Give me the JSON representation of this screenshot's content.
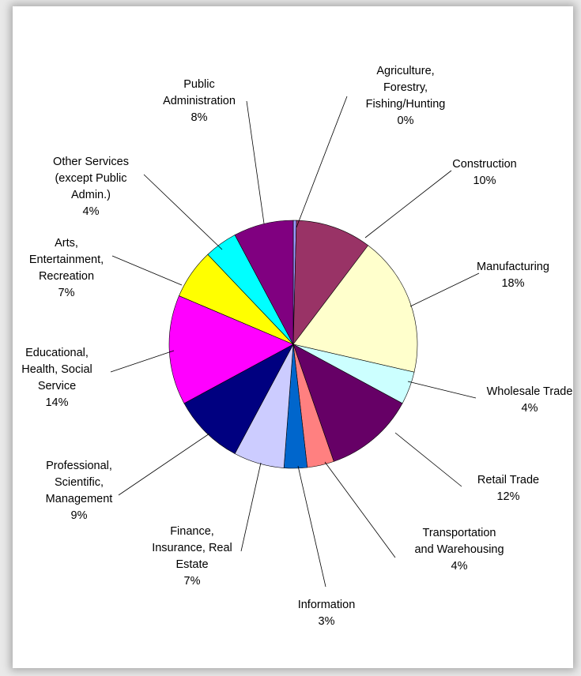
{
  "chart_data": {
    "type": "pie",
    "slices": [
      {
        "label": "Agriculture,\nForestry,\nFishing/Hunting",
        "pct_label": "0%",
        "value": 0.4,
        "color": "#9999FF"
      },
      {
        "label": "Construction",
        "pct_label": "10%",
        "value": 9.9,
        "color": "#993366"
      },
      {
        "label": "Manufacturing",
        "pct_label": "18%",
        "value": 18.3,
        "color": "#FFFFCC"
      },
      {
        "label": "Wholesale Trade",
        "pct_label": "4%",
        "value": 4.3,
        "color": "#CCFFFF"
      },
      {
        "label": "Retail Trade",
        "pct_label": "12%",
        "value": 11.8,
        "color": "#660066"
      },
      {
        "label": "Transportation\nand Warehousing",
        "pct_label": "4%",
        "value": 3.5,
        "color": "#FF8080"
      },
      {
        "label": "Information",
        "pct_label": "3%",
        "value": 3.0,
        "color": "#0066CC"
      },
      {
        "label": "Finance,\nInsurance, Real\nEstate",
        "pct_label": "7%",
        "value": 6.6,
        "color": "#CCCCFF"
      },
      {
        "label": "Professional,\nScientific,\nManagement",
        "pct_label": "9%",
        "value": 9.3,
        "color": "#000080"
      },
      {
        "label": "Educational,\nHealth, Social\nService",
        "pct_label": "14%",
        "value": 14.3,
        "color": "#FF00FF"
      },
      {
        "label": "Arts,\nEntertainment,\nRecreation",
        "pct_label": "7%",
        "value": 6.5,
        "color": "#FFFF00"
      },
      {
        "label": "Other Services\n(except Public\nAdmin.)",
        "pct_label": "4%",
        "value": 4.3,
        "color": "#00FFFF"
      },
      {
        "label": "Public\nAdministration",
        "pct_label": "8%",
        "value": 7.8,
        "color": "#800080"
      }
    ],
    "title": "",
    "legend": "none",
    "start": "top, clockwise"
  }
}
